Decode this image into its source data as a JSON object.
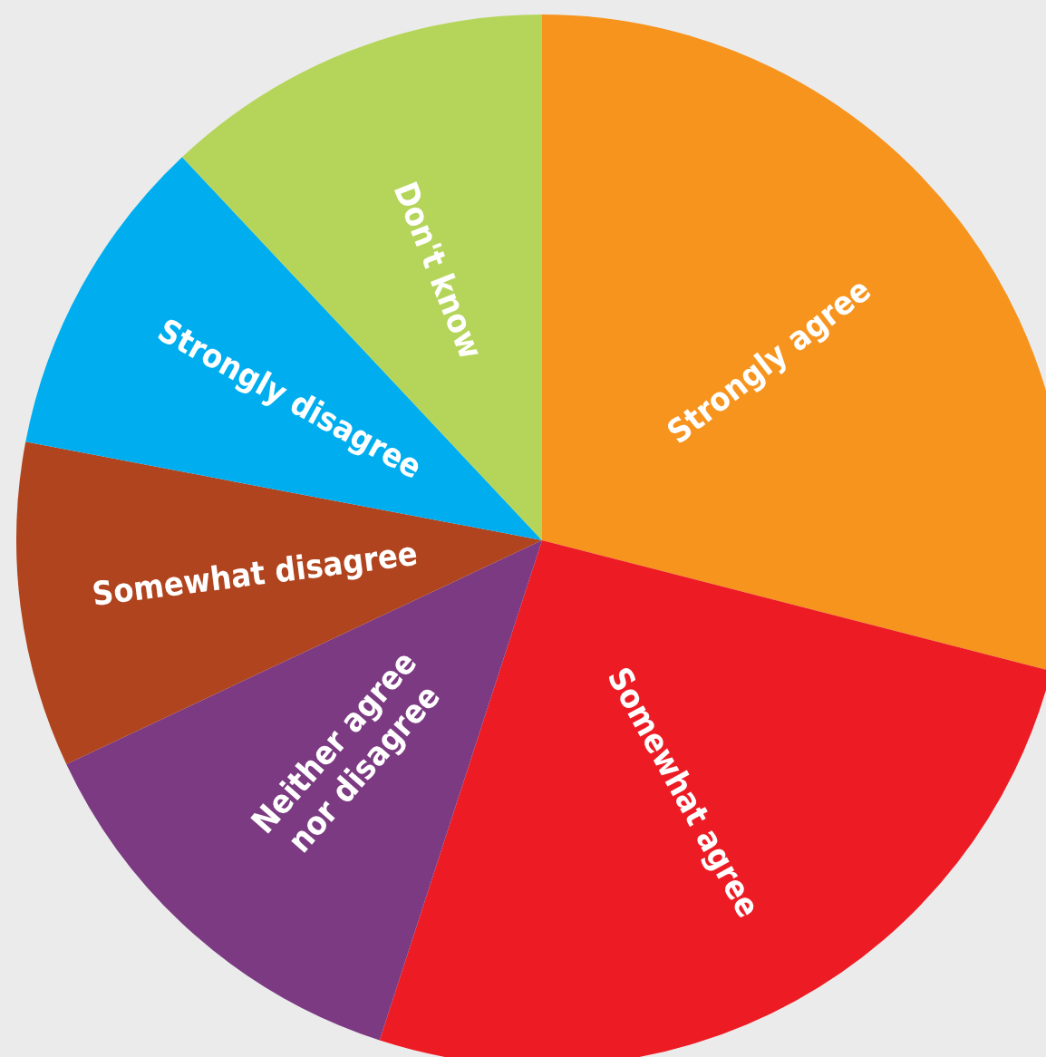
{
  "chart_data": {
    "type": "pie",
    "categories": [
      "Strongly agree",
      "Somewhat agree",
      "Neither agree nor disagree",
      "Somewhat disagree",
      "Strongly disagree",
      "Don't know"
    ],
    "values": [
      29,
      26,
      13,
      10,
      10,
      12
    ],
    "colors": [
      "#f7941d",
      "#ed1c24",
      "#7b3a82",
      "#b0441f",
      "#00aeef",
      "#b5d55a"
    ],
    "legend": false
  }
}
